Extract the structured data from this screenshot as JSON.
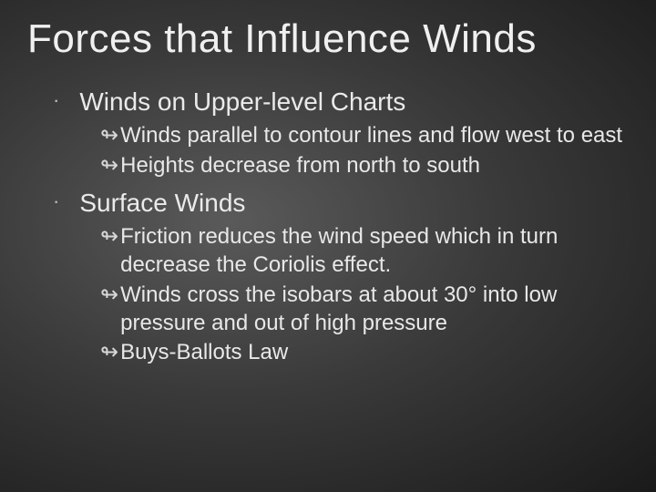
{
  "slide": {
    "title": "Forces that Influence Winds",
    "title_fontsize": 44,
    "background": {
      "type": "radial-gradient",
      "center_color": "#5a5a5a",
      "mid_color": "#3a3a3a",
      "edge_color": "#1a1a1a"
    },
    "text_color": "#e8e8e8",
    "sections": [
      {
        "title": "Winds on Upper-level Charts",
        "title_fontsize": 28,
        "bullet_style": "dot",
        "items": [
          {
            "text": "Winds parallel to contour lines and flow west to east",
            "bullet": "curl"
          },
          {
            "text": "Heights decrease from north to south",
            "bullet": "curl"
          }
        ]
      },
      {
        "title": "Surface Winds",
        "title_fontsize": 28,
        "bullet_style": "dot",
        "items": [
          {
            "text": "Friction reduces the wind speed which in turn decrease the Coriolis effect.",
            "bullet": "curl"
          },
          {
            "text": "Winds cross the isobars at about 30° into low pressure and out of high pressure",
            "bullet": "curl"
          },
          {
            "text": "Buys-Ballots Law",
            "bullet": "curl"
          }
        ]
      }
    ],
    "bullets": {
      "dot_glyph": "·",
      "curl_glyph": "↬"
    },
    "sub_fontsize": 24
  }
}
